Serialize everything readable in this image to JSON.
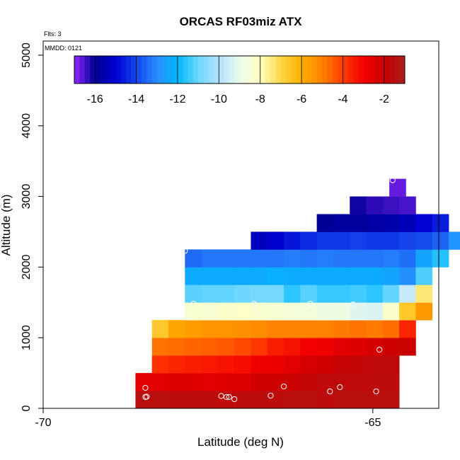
{
  "chart_data": {
    "type": "heatmap",
    "title": "ORCAS RF03miz ATX",
    "flights_note": "Flts: 3",
    "date_note": "MMDD: 0121",
    "xlabel": "Latitude (deg N)",
    "ylabel": "Altitude (m)",
    "xlim": [
      -70,
      -64
    ],
    "ylim": [
      0,
      5200
    ],
    "x_ticks": [
      -70,
      -65
    ],
    "y_ticks": [
      0,
      1000,
      2000,
      3000,
      4000,
      5000
    ],
    "cell_lat_width": 0.25,
    "cell_alt_height": 250,
    "colorbar": {
      "range": [
        -17,
        -1
      ],
      "ticks": [
        -16,
        -14,
        -12,
        -10,
        -8,
        -6,
        -4,
        -2
      ]
    },
    "rows": [
      {
        "alt": 0,
        "lat_start": -68.6,
        "values": [
          -1.5,
          -1.5,
          -1.6,
          -1.6,
          -1.6,
          -1.7,
          -1.6,
          -1.6,
          -1.6,
          -1.5,
          -1.5,
          -1.6,
          -1.5,
          -1.5,
          -1.5,
          -1.5
        ]
      },
      {
        "alt": 250,
        "lat_start": -68.6,
        "values": [
          -2.6,
          -2.6,
          -2.5,
          -2.5,
          -2.6,
          -2.5,
          -2.5,
          -2.2,
          -2.1,
          -2.0,
          -1.8,
          -1.7,
          -1.7,
          -1.7,
          -1.6,
          -1.6
        ]
      },
      {
        "alt": 500,
        "lat_start": -68.35,
        "values": [
          -3.8,
          -3.6,
          -3.5,
          -3.4,
          -3.3,
          -3.2,
          -2.9,
          -2.8,
          -2.6,
          -2.3,
          -2.2,
          -1.9,
          -1.8,
          -1.7,
          -1.7
        ]
      },
      {
        "alt": 750,
        "lat_start": -68.35,
        "values": [
          -4.8,
          -4.7,
          -4.6,
          -4.5,
          -4.4,
          -4.2,
          -3.9,
          -3.5,
          -3.3,
          -3.0,
          -2.9,
          -2.6,
          -2.5,
          -2.3,
          -2.1,
          -2.0
        ]
      },
      {
        "alt": 1000,
        "lat_start": -68.35,
        "values": [
          -6.6,
          -5.8,
          -5.6,
          -5.4,
          -5.4,
          -5.3,
          -5.2,
          -5.0,
          -5.0,
          -5.0,
          -5.0,
          -4.9,
          -4.8,
          -4.9,
          -4.7,
          -3.6
        ]
      },
      {
        "alt": 1250,
        "lat_start": -67.85,
        "values": [
          -8.3,
          -8.4,
          -8.2,
          -8.1,
          -8.3,
          -8.4,
          -8.5,
          -8.6,
          -8.8,
          -8.8,
          -9.2,
          -9.3,
          -8.2,
          -6.6,
          -5.5
        ]
      },
      {
        "alt": 1500,
        "lat_start": -67.85,
        "values": [
          -11.2,
          -11.1,
          -11.1,
          -11.0,
          -10.9,
          -10.9,
          -11.6,
          -11.2,
          -11.5,
          -11.5,
          -11.4,
          -11.6,
          -11.1,
          -9.7,
          -7.4
        ]
      },
      {
        "alt": 1750,
        "lat_start": -67.85,
        "values": [
          -12.3,
          -12.3,
          -12.3,
          -12.3,
          -12.3,
          -12.2,
          -12.3,
          -12.3,
          -12.3,
          -12.3,
          -12.3,
          -12.3,
          -12.5,
          -12.9,
          -11.3
        ]
      },
      {
        "alt": 2000,
        "lat_start": -67.85,
        "values": [
          -13.5,
          -13.3,
          -13.3,
          -13.3,
          -13.3,
          -13.3,
          -13.2,
          -13.3,
          -13.2,
          -13.3,
          -13.3,
          -13.3,
          -13.2,
          -13.4,
          -12.5,
          -11.7
        ]
      },
      {
        "alt": 2250,
        "lat_start": -66.85,
        "values": [
          -15.3,
          -15.1,
          -14.7,
          -14.4,
          -14.2,
          -14.2,
          -14.1,
          -14.2,
          -14.2,
          -14.0,
          -13.9,
          -13.6,
          -12.8
        ]
      },
      {
        "alt": 2500,
        "lat_start": -65.85,
        "values": [
          -16.0,
          -15.9,
          -15.9,
          -15.8,
          -15.7,
          -15.4,
          -15.0,
          -14.6
        ]
      },
      {
        "alt": 2750,
        "lat_start": -65.35,
        "values": [
          -16.1,
          -16.3,
          -16.4,
          -16.5
        ]
      },
      {
        "alt": 3000,
        "lat_start": -64.75,
        "values": [
          -16.7
        ]
      }
    ],
    "flight_points": [
      [
        -68.45,
        160
      ],
      [
        -68.43,
        165
      ],
      [
        -68.45,
        290
      ],
      [
        -67.85,
        2230
      ],
      [
        -67.72,
        1480
      ],
      [
        -67.77,
        1290
      ],
      [
        -67.3,
        175
      ],
      [
        -67.22,
        160
      ],
      [
        -67.18,
        160
      ],
      [
        -67.1,
        130
      ],
      [
        -66.8,
        1480
      ],
      [
        -66.55,
        180
      ],
      [
        -66.35,
        310
      ],
      [
        -65.95,
        1480
      ],
      [
        -65.65,
        240
      ],
      [
        -65.5,
        300
      ],
      [
        -65.3,
        1470
      ],
      [
        -64.95,
        240
      ],
      [
        -64.9,
        830
      ],
      [
        -64.7,
        3230
      ]
    ]
  }
}
